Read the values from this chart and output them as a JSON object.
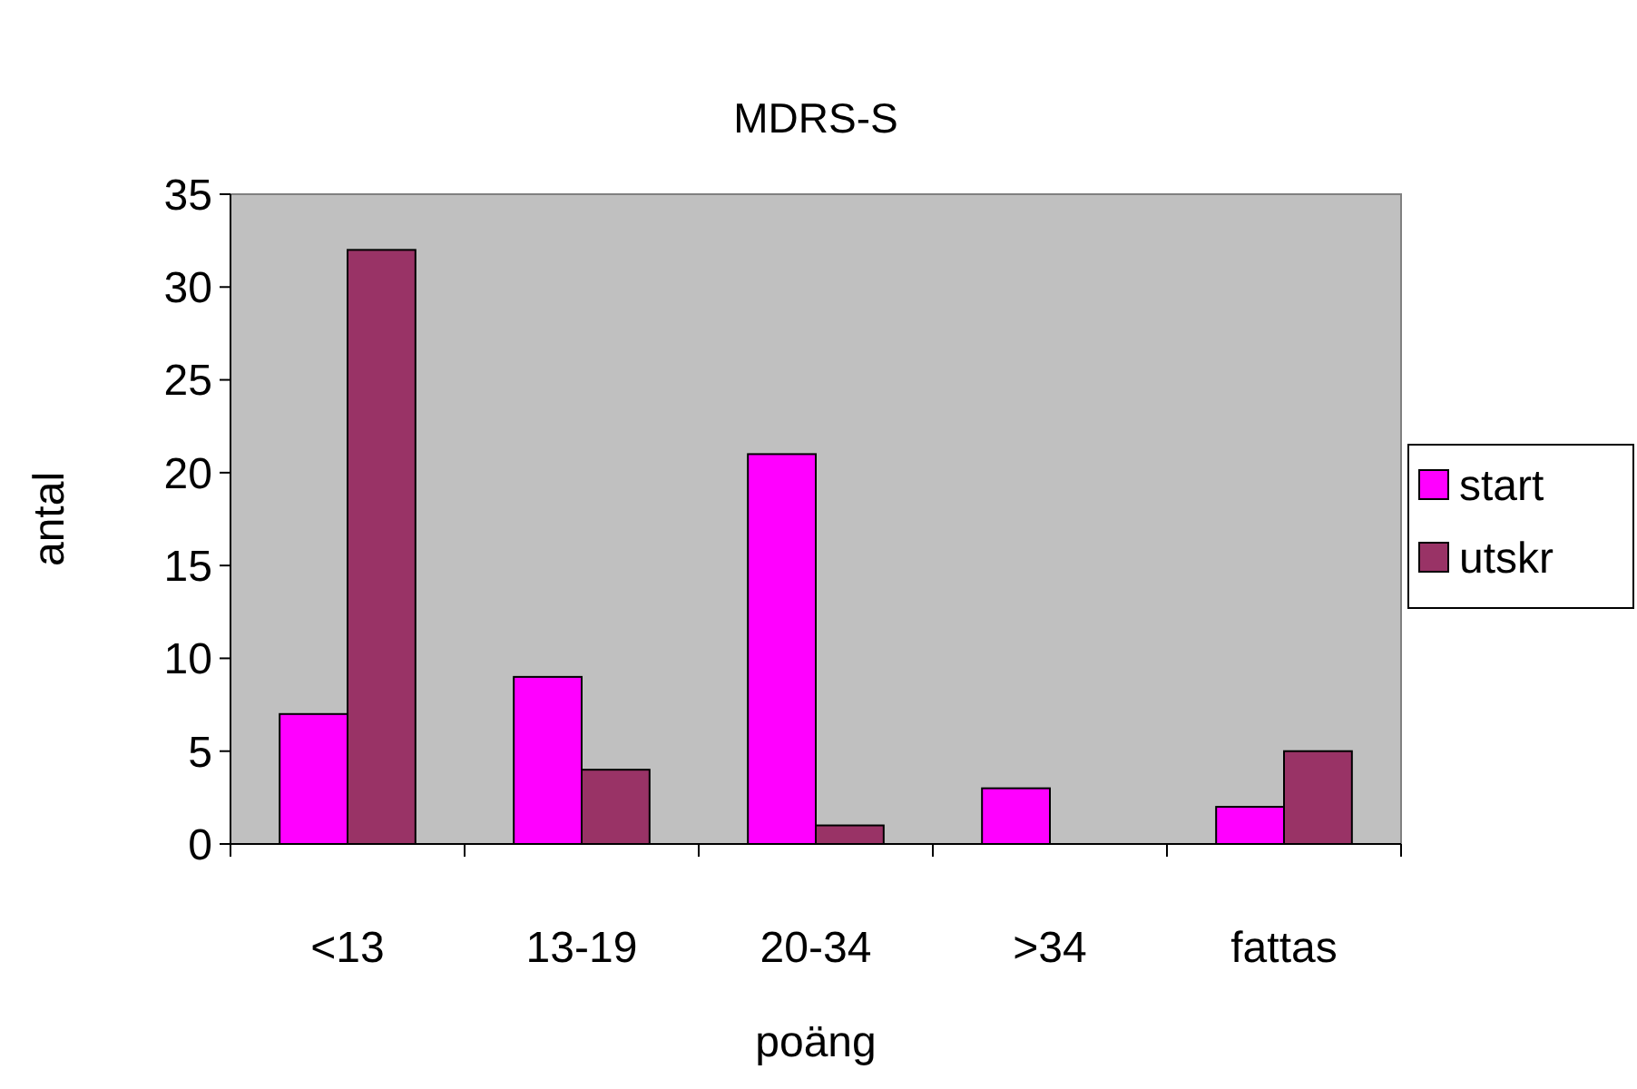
{
  "chart_data": {
    "type": "bar",
    "title": "MDRS-S",
    "xlabel": "poäng",
    "ylabel": "antal",
    "categories": [
      "<13",
      "13-19",
      "20-34",
      ">34",
      "fattas"
    ],
    "series": [
      {
        "name": "start",
        "color": "#ff00ff",
        "values": [
          7,
          9,
          21,
          3,
          2
        ]
      },
      {
        "name": "utskr",
        "color": "#993366",
        "values": [
          32,
          4,
          1,
          0,
          5
        ]
      }
    ],
    "ylim": [
      0,
      35
    ],
    "yticks": [
      0,
      5,
      10,
      15,
      20,
      25,
      30,
      35
    ],
    "grid": false,
    "legend": "right"
  }
}
